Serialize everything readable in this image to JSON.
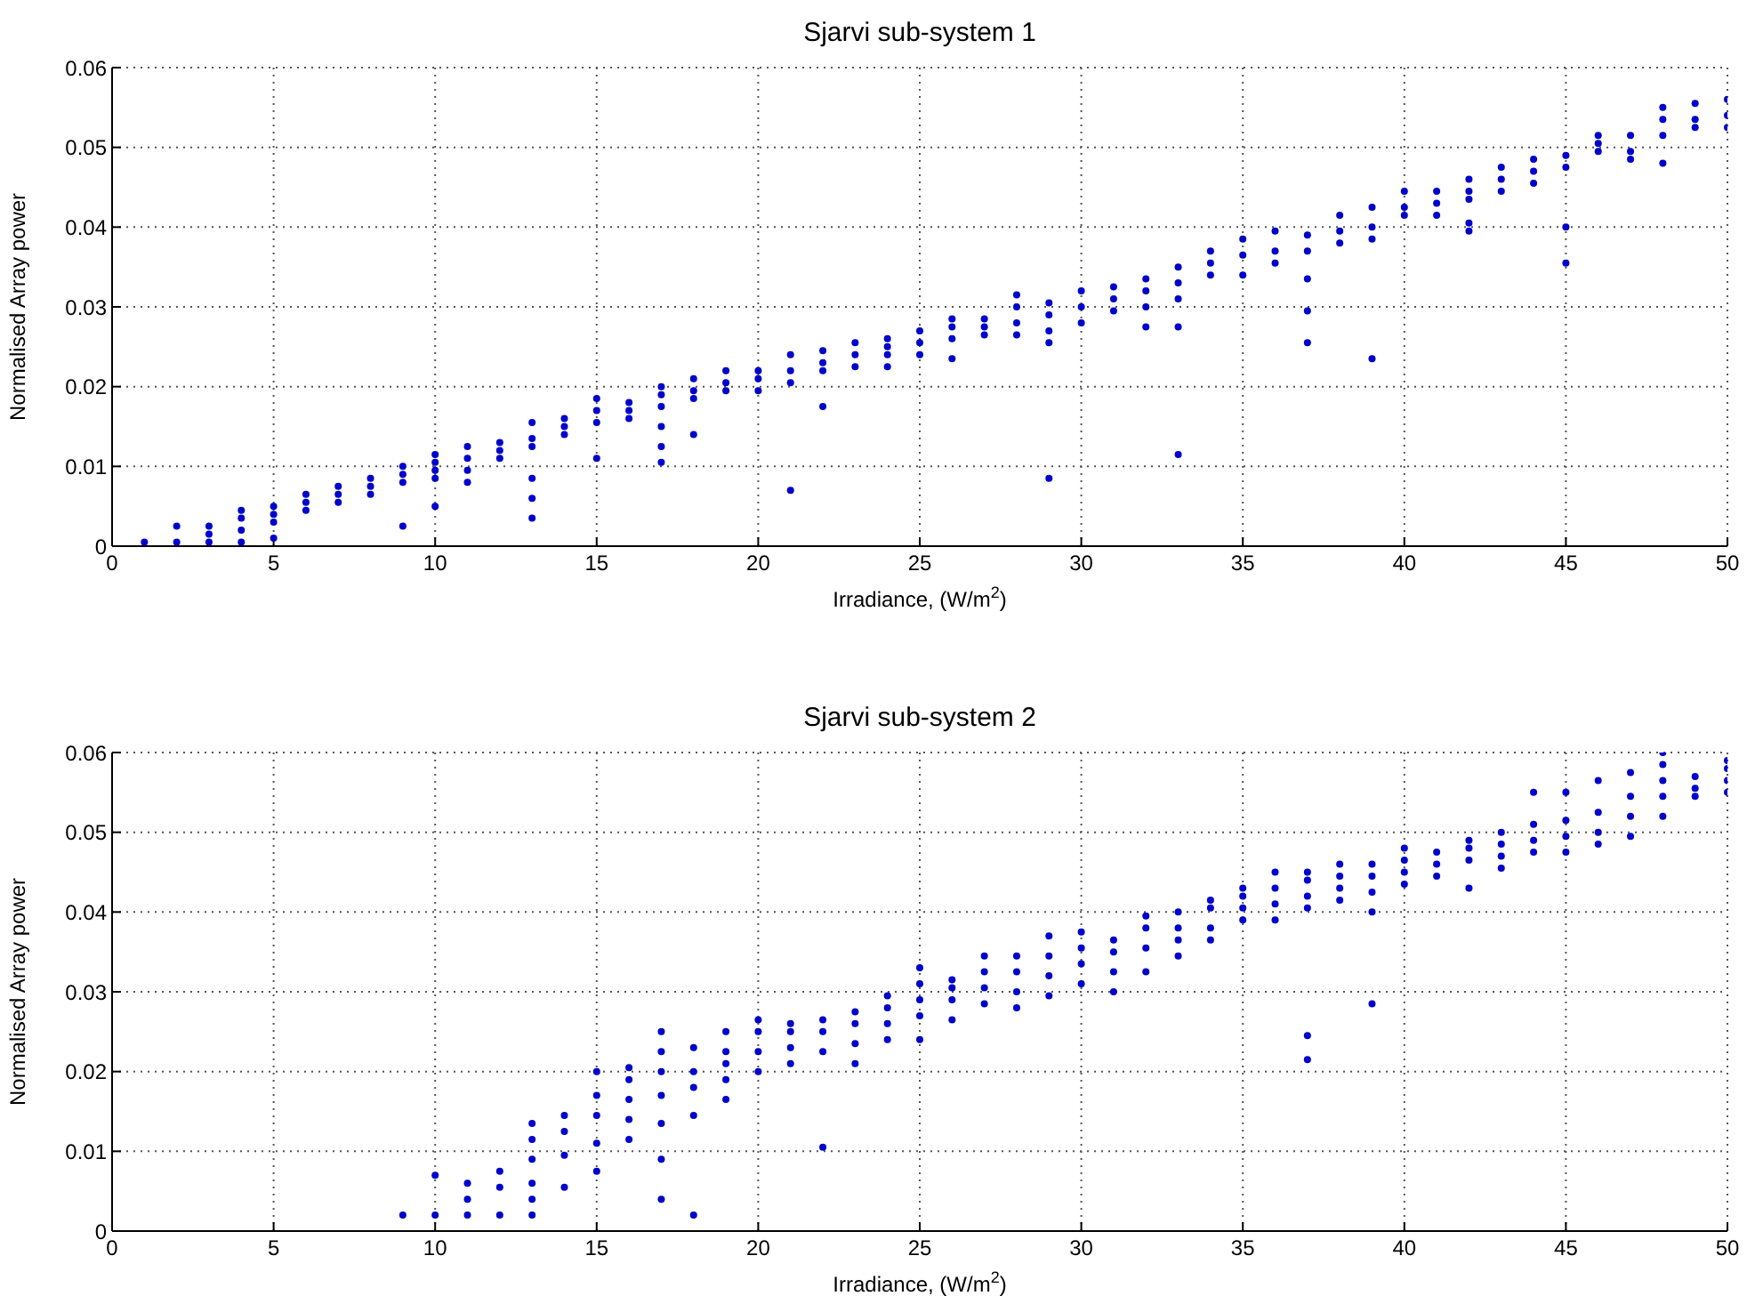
{
  "chart_data": [
    {
      "type": "scatter",
      "title": "Sjarvi sub-system 1",
      "xlabel": "Irradiance, (W/m$^{2}$)",
      "ylabel": "Normalised Array power",
      "xlim": [
        0,
        50
      ],
      "xticks": [
        0,
        5,
        10,
        15,
        20,
        25,
        30,
        35,
        40,
        45,
        50
      ],
      "ylim": [
        0,
        0.06
      ],
      "yticks": [
        0,
        0.01,
        0.02,
        0.03,
        0.04,
        0.05,
        0.06
      ],
      "grid": true,
      "marker": "circle",
      "series": [
        {
          "color": "#0000cc",
          "x": [
            1,
            2,
            2,
            3,
            3,
            3,
            4,
            4,
            4,
            4,
            5,
            5,
            5,
            5,
            6,
            6,
            6,
            7,
            7,
            7,
            8,
            8,
            8,
            9,
            9,
            9,
            9,
            10,
            10,
            10,
            10,
            10,
            11,
            11,
            11,
            11,
            12,
            12,
            12,
            13,
            13,
            13,
            13,
            13,
            13,
            14,
            14,
            14,
            15,
            15,
            15,
            15,
            16,
            16,
            16,
            17,
            17,
            17,
            17,
            17,
            17,
            18,
            18,
            18,
            18,
            19,
            19,
            19,
            20,
            20,
            20,
            21,
            21,
            21,
            21,
            22,
            22,
            22,
            22,
            23,
            23,
            23,
            24,
            24,
            24,
            24,
            25,
            25,
            25,
            26,
            26,
            26,
            26,
            27,
            27,
            27,
            28,
            28,
            28,
            28,
            29,
            29,
            29,
            29,
            29,
            30,
            30,
            30,
            31,
            31,
            31,
            32,
            32,
            32,
            32,
            33,
            33,
            33,
            33,
            33,
            34,
            34,
            34,
            35,
            35,
            35,
            36,
            36,
            36,
            37,
            37,
            37,
            37,
            37,
            38,
            38,
            38,
            39,
            39,
            39,
            39,
            40,
            40,
            40,
            41,
            41,
            41,
            42,
            42,
            42,
            42,
            42,
            43,
            43,
            43,
            44,
            44,
            44,
            45,
            45,
            45,
            45,
            46,
            46,
            46,
            47,
            47,
            47,
            48,
            48,
            48,
            48,
            49,
            49,
            49,
            50,
            50,
            50
          ],
          "values": [
            0.0005,
            0.0005,
            0.0025,
            0.0005,
            0.0015,
            0.0025,
            0.0005,
            0.002,
            0.0035,
            0.0045,
            0.001,
            0.003,
            0.004,
            0.005,
            0.0045,
            0.0055,
            0.0065,
            0.0055,
            0.0065,
            0.0075,
            0.0065,
            0.0075,
            0.0085,
            0.0025,
            0.008,
            0.009,
            0.01,
            0.005,
            0.0085,
            0.0095,
            0.0105,
            0.0115,
            0.008,
            0.0095,
            0.011,
            0.0125,
            0.011,
            0.012,
            0.013,
            0.0035,
            0.006,
            0.0085,
            0.0125,
            0.0135,
            0.0155,
            0.014,
            0.015,
            0.016,
            0.011,
            0.0155,
            0.017,
            0.0185,
            0.016,
            0.017,
            0.018,
            0.0105,
            0.0125,
            0.015,
            0.0175,
            0.019,
            0.02,
            0.014,
            0.0185,
            0.0195,
            0.021,
            0.0195,
            0.0205,
            0.022,
            0.0195,
            0.021,
            0.022,
            0.007,
            0.0205,
            0.022,
            0.024,
            0.0175,
            0.022,
            0.023,
            0.0245,
            0.0225,
            0.024,
            0.0255,
            0.0225,
            0.024,
            0.025,
            0.026,
            0.024,
            0.0255,
            0.027,
            0.0235,
            0.026,
            0.0275,
            0.0285,
            0.0265,
            0.0275,
            0.0285,
            0.0265,
            0.028,
            0.03,
            0.0315,
            0.0085,
            0.0255,
            0.027,
            0.029,
            0.0305,
            0.028,
            0.03,
            0.032,
            0.0295,
            0.031,
            0.0325,
            0.0275,
            0.03,
            0.032,
            0.0335,
            0.0115,
            0.0275,
            0.031,
            0.033,
            0.035,
            0.034,
            0.0355,
            0.037,
            0.034,
            0.0365,
            0.0385,
            0.0355,
            0.037,
            0.0395,
            0.0255,
            0.0295,
            0.0335,
            0.037,
            0.039,
            0.038,
            0.0395,
            0.0415,
            0.0235,
            0.0385,
            0.04,
            0.0425,
            0.0415,
            0.0425,
            0.0445,
            0.0415,
            0.043,
            0.0445,
            0.0395,
            0.0405,
            0.0435,
            0.0445,
            0.046,
            0.0445,
            0.046,
            0.0475,
            0.0455,
            0.047,
            0.0485,
            0.0355,
            0.04,
            0.0475,
            0.049,
            0.0495,
            0.0505,
            0.0515,
            0.0485,
            0.0495,
            0.0515,
            0.048,
            0.0515,
            0.0535,
            0.055,
            0.0525,
            0.0535,
            0.0555,
            0.0525,
            0.054,
            0.056
          ]
        }
      ]
    },
    {
      "type": "scatter",
      "title": "Sjarvi sub-system 2",
      "xlabel": "Irradiance, (W/m$^{2}$)",
      "ylabel": "Normalised Array power",
      "xlim": [
        0,
        50
      ],
      "xticks": [
        0,
        5,
        10,
        15,
        20,
        25,
        30,
        35,
        40,
        45,
        50
      ],
      "ylim": [
        0,
        0.06
      ],
      "yticks": [
        0,
        0.01,
        0.02,
        0.03,
        0.04,
        0.05,
        0.06
      ],
      "grid": true,
      "marker": "circle",
      "series": [
        {
          "color": "#0000cc",
          "x": [
            9,
            10,
            10,
            11,
            11,
            11,
            12,
            12,
            12,
            13,
            13,
            13,
            13,
            13,
            13,
            14,
            14,
            14,
            14,
            15,
            15,
            15,
            15,
            15,
            16,
            16,
            16,
            16,
            16,
            17,
            17,
            17,
            17,
            17,
            17,
            17,
            18,
            18,
            18,
            18,
            18,
            19,
            19,
            19,
            19,
            19,
            20,
            20,
            20,
            20,
            21,
            21,
            21,
            21,
            22,
            22,
            22,
            22,
            23,
            23,
            23,
            23,
            24,
            24,
            24,
            24,
            25,
            25,
            25,
            25,
            25,
            26,
            26,
            26,
            26,
            27,
            27,
            27,
            27,
            28,
            28,
            28,
            28,
            29,
            29,
            29,
            29,
            30,
            30,
            30,
            30,
            31,
            31,
            31,
            31,
            32,
            32,
            32,
            32,
            33,
            33,
            33,
            33,
            34,
            34,
            34,
            34,
            35,
            35,
            35,
            35,
            36,
            36,
            36,
            36,
            37,
            37,
            37,
            37,
            37,
            37,
            38,
            38,
            38,
            38,
            39,
            39,
            39,
            39,
            39,
            40,
            40,
            40,
            40,
            41,
            41,
            41,
            42,
            42,
            42,
            42,
            43,
            43,
            43,
            43,
            44,
            44,
            44,
            44,
            45,
            45,
            45,
            45,
            46,
            46,
            46,
            46,
            47,
            47,
            47,
            47,
            48,
            48,
            48,
            48,
            48,
            49,
            49,
            49,
            50,
            50,
            50,
            50
          ],
          "values": [
            0.002,
            0.002,
            0.007,
            0.002,
            0.004,
            0.006,
            0.002,
            0.0055,
            0.0075,
            0.002,
            0.004,
            0.006,
            0.009,
            0.0115,
            0.0135,
            0.0055,
            0.0095,
            0.0125,
            0.0145,
            0.0075,
            0.011,
            0.0145,
            0.017,
            0.02,
            0.0115,
            0.014,
            0.0165,
            0.019,
            0.0205,
            0.004,
            0.009,
            0.0135,
            0.017,
            0.02,
            0.0225,
            0.025,
            0.002,
            0.0145,
            0.018,
            0.02,
            0.023,
            0.0165,
            0.019,
            0.021,
            0.0225,
            0.025,
            0.02,
            0.0225,
            0.025,
            0.0265,
            0.021,
            0.023,
            0.025,
            0.026,
            0.0105,
            0.0225,
            0.025,
            0.0265,
            0.021,
            0.0235,
            0.026,
            0.0275,
            0.024,
            0.026,
            0.028,
            0.0295,
            0.024,
            0.027,
            0.029,
            0.031,
            0.033,
            0.0265,
            0.029,
            0.0305,
            0.0315,
            0.0285,
            0.0305,
            0.0325,
            0.0345,
            0.028,
            0.03,
            0.0325,
            0.0345,
            0.0295,
            0.032,
            0.0345,
            0.037,
            0.031,
            0.0335,
            0.0355,
            0.0375,
            0.03,
            0.0325,
            0.035,
            0.0365,
            0.0325,
            0.0355,
            0.038,
            0.0395,
            0.0345,
            0.0365,
            0.038,
            0.04,
            0.0365,
            0.038,
            0.0405,
            0.0415,
            0.039,
            0.0405,
            0.042,
            0.043,
            0.039,
            0.041,
            0.043,
            0.045,
            0.0215,
            0.0245,
            0.0405,
            0.042,
            0.044,
            0.045,
            0.0415,
            0.043,
            0.0445,
            0.046,
            0.0285,
            0.04,
            0.0425,
            0.0445,
            0.046,
            0.0435,
            0.045,
            0.0465,
            0.048,
            0.0445,
            0.046,
            0.0475,
            0.043,
            0.0465,
            0.048,
            0.049,
            0.0455,
            0.047,
            0.0485,
            0.05,
            0.0475,
            0.049,
            0.051,
            0.055,
            0.0475,
            0.0495,
            0.0515,
            0.055,
            0.0485,
            0.05,
            0.0525,
            0.0565,
            0.0495,
            0.052,
            0.0545,
            0.0575,
            0.052,
            0.0545,
            0.0565,
            0.0585,
            0.06,
            0.0545,
            0.0555,
            0.057,
            0.055,
            0.0565,
            0.058,
            0.059
          ]
        }
      ]
    }
  ]
}
